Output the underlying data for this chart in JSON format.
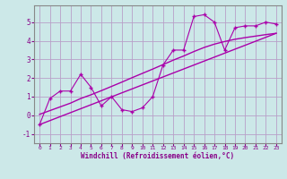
{
  "xlabel": "Windchill (Refroidissement éolien,°C)",
  "ylabel": "",
  "bg_color": "#cce8e8",
  "grid_color": "#b8a0c8",
  "line_color": "#aa00aa",
  "xlim": [
    -0.5,
    23.5
  ],
  "ylim": [
    -1.5,
    5.9
  ],
  "xticks": [
    0,
    1,
    2,
    3,
    4,
    5,
    6,
    7,
    8,
    9,
    10,
    11,
    12,
    13,
    14,
    15,
    16,
    17,
    18,
    19,
    20,
    21,
    22,
    23
  ],
  "yticks": [
    -1,
    0,
    1,
    2,
    3,
    4,
    5
  ],
  "ref_line_x": [
    0,
    23
  ],
  "ref_line_y": [
    -0.5,
    4.4
  ],
  "data_x": [
    0,
    1,
    2,
    3,
    4,
    5,
    6,
    7,
    8,
    9,
    10,
    11,
    12,
    13,
    14,
    15,
    16,
    17,
    18,
    19,
    20,
    21,
    22,
    23
  ],
  "data_y": [
    -0.5,
    0.9,
    1.3,
    1.3,
    2.2,
    1.5,
    0.5,
    1.0,
    0.3,
    0.2,
    0.4,
    1.0,
    2.7,
    3.5,
    3.5,
    5.3,
    5.4,
    5.0,
    3.5,
    4.7,
    4.8,
    4.8,
    5.0,
    4.9
  ],
  "smooth_x": [
    0,
    1,
    2,
    3,
    4,
    5,
    6,
    7,
    8,
    9,
    10,
    11,
    12,
    13,
    14,
    15,
    16,
    17,
    18,
    19,
    20,
    21,
    22,
    23
  ],
  "smooth_y": [
    0.05,
    0.25,
    0.45,
    0.65,
    0.9,
    1.1,
    1.32,
    1.55,
    1.78,
    2.02,
    2.25,
    2.48,
    2.72,
    2.96,
    3.18,
    3.42,
    3.64,
    3.82,
    3.96,
    4.08,
    4.17,
    4.25,
    4.33,
    4.4
  ]
}
